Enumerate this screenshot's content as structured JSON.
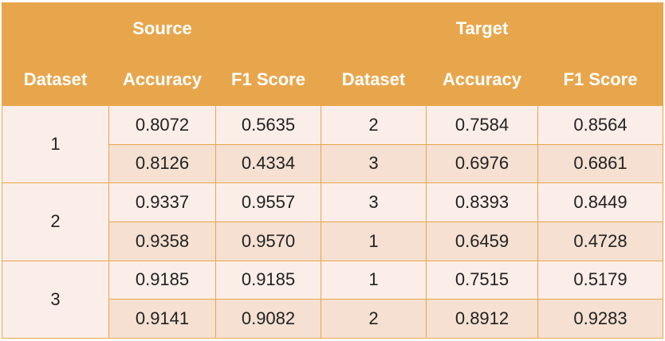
{
  "chart_data": {
    "type": "table",
    "group_headers": [
      "Source",
      "Target"
    ],
    "columns": [
      "Dataset",
      "Accuracy",
      "F1 Score",
      "Dataset",
      "Accuracy",
      "F1 Score"
    ],
    "groups": [
      {
        "source_dataset": "1",
        "rows": [
          {
            "source_accuracy": "0.8072",
            "source_f1": "0.5635",
            "target_dataset": "2",
            "target_accuracy": "0.7584",
            "target_f1": "0.8564"
          },
          {
            "source_accuracy": "0.8126",
            "source_f1": "0.4334",
            "target_dataset": "3",
            "target_accuracy": "0.6976",
            "target_f1": "0.6861"
          }
        ]
      },
      {
        "source_dataset": "2",
        "rows": [
          {
            "source_accuracy": "0.9337",
            "source_f1": "0.9557",
            "target_dataset": "3",
            "target_accuracy": "0.8393",
            "target_f1": "0.8449"
          },
          {
            "source_accuracy": "0.9358",
            "source_f1": "0.9570",
            "target_dataset": "1",
            "target_accuracy": "0.6459",
            "target_f1": "0.4728"
          }
        ]
      },
      {
        "source_dataset": "3",
        "rows": [
          {
            "source_accuracy": "0.9185",
            "source_f1": "0.9185",
            "target_dataset": "1",
            "target_accuracy": "0.7515",
            "target_f1": "0.5179"
          },
          {
            "source_accuracy": "0.9141",
            "source_f1": "0.9082",
            "target_dataset": "2",
            "target_accuracy": "0.8912",
            "target_f1": "0.9283"
          }
        ]
      }
    ],
    "colors": {
      "header": "#E8A64C",
      "row_light": "#FBEEE8",
      "row_dark": "#F5E0D2"
    }
  }
}
